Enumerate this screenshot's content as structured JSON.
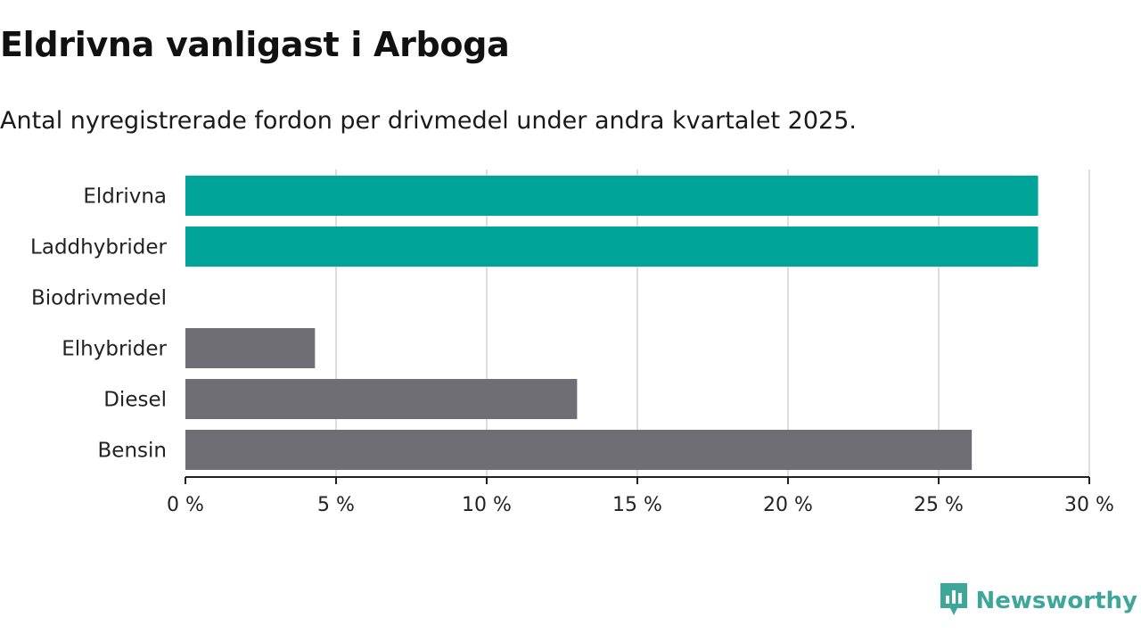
{
  "title": "Eldrivna vanligast i Arboga",
  "subtitle": "Antal nyregistrerade fordon per drivmedel under andra kvartalet 2025.",
  "brand": {
    "name": "Newsworthy",
    "color": "#3fa69a",
    "icon": "newsworthy-logo-icon"
  },
  "chart_data": {
    "type": "bar",
    "orientation": "horizontal",
    "categories": [
      "Eldrivna",
      "Laddhybrider",
      "Biodrivmedel",
      "Elhybrider",
      "Diesel",
      "Bensin"
    ],
    "values": [
      28.3,
      28.3,
      0,
      4.3,
      13.0,
      26.1
    ],
    "colors": [
      "#00a499",
      "#00a499",
      "#00a499",
      "#6f6e75",
      "#6f6e75",
      "#6f6e75"
    ],
    "xlim": [
      0,
      30
    ],
    "xticks": [
      0,
      5,
      10,
      15,
      20,
      25,
      30
    ],
    "xtick_labels": [
      "0 %",
      "5 %",
      "10 %",
      "15 %",
      "20 %",
      "25 %",
      "30 %"
    ],
    "grid": true
  }
}
